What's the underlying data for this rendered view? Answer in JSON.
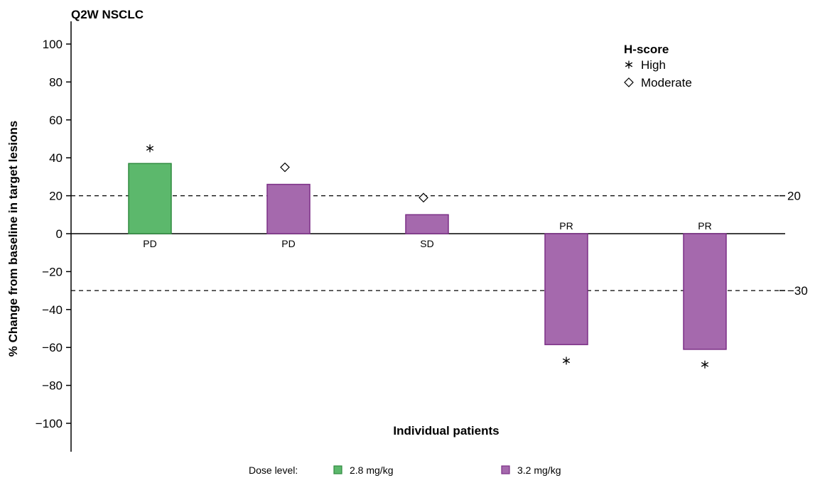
{
  "chart_data": {
    "type": "bar",
    "title": "Q2W NSCLC",
    "ylabel": "% Change from baseline in target lesions",
    "xlabel": "Individual patients",
    "ylim": [
      -115,
      112
    ],
    "yticks": [
      100,
      80,
      60,
      40,
      20,
      0,
      -20,
      -40,
      -60,
      -80,
      -100
    ],
    "ytick_labels": [
      "100",
      "80",
      "60",
      "40",
      "20",
      "0",
      "−20",
      "−40",
      "−60",
      "−80",
      "−100"
    ],
    "reference_lines": [
      {
        "value": 20,
        "label": "20"
      },
      {
        "value": -30,
        "label": "−30"
      }
    ],
    "bars": [
      {
        "value": 37,
        "response": "PD",
        "dose": "2.8 mg/kg",
        "hscore": "High",
        "marker_value": 45
      },
      {
        "value": 26,
        "response": "PD",
        "dose": "3.2 mg/kg",
        "hscore": "Moderate",
        "marker_value": 35
      },
      {
        "value": 10,
        "response": "SD",
        "dose": "3.2 mg/kg",
        "hscore": "Moderate",
        "marker_value": 19
      },
      {
        "value": -58.5,
        "response": "PR",
        "dose": "3.2 mg/kg",
        "hscore": "High",
        "marker_value": -67
      },
      {
        "value": -61,
        "response": "PR",
        "dose": "3.2 mg/kg",
        "hscore": "High",
        "marker_value": -69
      }
    ],
    "dose_colors": {
      "2.8 mg/kg": {
        "fill": "#5cb86c",
        "stroke": "#2f8a3f"
      },
      "3.2 mg/kg": {
        "fill": "#a569ad",
        "stroke": "#7b2f86"
      }
    },
    "legend_hscore": {
      "title": "H-score",
      "items": [
        {
          "symbol": "asterisk",
          "label": "High"
        },
        {
          "symbol": "diamond",
          "label": "Moderate"
        }
      ]
    },
    "legend_dose": {
      "label": "Dose level:",
      "items": [
        "2.8 mg/kg",
        "3.2 mg/kg"
      ]
    }
  }
}
